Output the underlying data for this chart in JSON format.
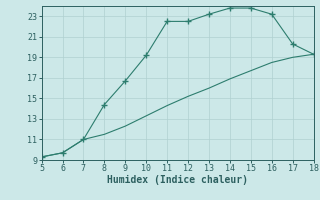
{
  "xlabel": "Humidex (Indice chaleur)",
  "xlim": [
    5,
    18
  ],
  "ylim": [
    9,
    24
  ],
  "xticks": [
    5,
    6,
    7,
    8,
    9,
    10,
    11,
    12,
    13,
    14,
    15,
    16,
    17,
    18
  ],
  "yticks": [
    9,
    11,
    13,
    15,
    17,
    19,
    21,
    23
  ],
  "line1_x": [
    5,
    6,
    7,
    8,
    9,
    10,
    11,
    12,
    13,
    14,
    15,
    16,
    17,
    18
  ],
  "line1_y": [
    9.3,
    9.7,
    11.0,
    14.4,
    16.7,
    19.2,
    22.5,
    22.5,
    23.2,
    23.8,
    23.8,
    23.2,
    20.3,
    19.3
  ],
  "line2_x": [
    5,
    6,
    7,
    8,
    9,
    10,
    11,
    12,
    13,
    14,
    15,
    16,
    17,
    18
  ],
  "line2_y": [
    9.3,
    9.7,
    11.0,
    11.5,
    12.3,
    13.3,
    14.3,
    15.2,
    16.0,
    16.9,
    17.7,
    18.5,
    19.0,
    19.3
  ],
  "line_color": "#2d7d6e",
  "bg_color": "#cce8e8",
  "grid_major_color": "#b0d0d0",
  "grid_minor_color": "#c5e0e0",
  "font_color": "#2d6060",
  "tick_color": "#2d6060"
}
